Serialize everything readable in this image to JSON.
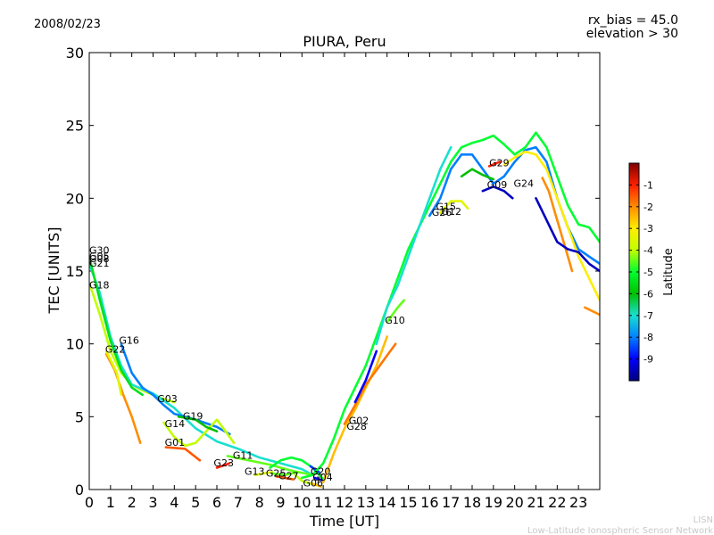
{
  "header": {
    "date": "2008/02/23",
    "bias": "rx_bias = 45.0",
    "elevation": "elevation > 30"
  },
  "footer": {
    "line1": "LISN",
    "line2": "Low-Latitude Ionospheric Sensor Network"
  },
  "colors": {
    "stops": [
      "#00007f",
      "#0000ff",
      "#007fff",
      "#19e0d0",
      "#00c000",
      "#00ff30",
      "#c0ff00",
      "#ffee00",
      "#ff8c00",
      "#ff2000",
      "#7f0000"
    ]
  },
  "chart_data": {
    "type": "scatter",
    "title": "PIURA, Peru",
    "xlabel": "Time [UT]",
    "ylabel": "TEC [UNITS]",
    "xlim": [
      0,
      24
    ],
    "ylim": [
      0,
      30
    ],
    "xticks": [
      "0",
      "1",
      "2",
      "3",
      "4",
      "5",
      "6",
      "7",
      "8",
      "9",
      "10",
      "11",
      "12",
      "13",
      "14",
      "15",
      "16",
      "17",
      "18",
      "19",
      "20",
      "21",
      "22",
      "23"
    ],
    "yticks": [
      "0",
      "5",
      "10",
      "15",
      "20",
      "25",
      "30"
    ],
    "colorbar": {
      "label": "Latitude",
      "range": [
        -10,
        0
      ],
      "ticks": [
        "-1",
        "-2",
        "-3",
        "-4",
        "-5",
        "-6",
        "-7",
        "-8",
        "-9"
      ]
    },
    "series": [
      {
        "lat": -4.0,
        "points": [
          [
            0,
            14.2
          ],
          [
            0.5,
            12.0
          ],
          [
            1.0,
            9.5
          ],
          [
            1.5,
            8.0
          ],
          [
            2.0,
            7.2
          ],
          [
            2.5,
            6.8
          ],
          [
            3.0,
            6.5
          ],
          [
            3.5,
            6.2
          ],
          [
            4.0,
            6.0
          ]
        ]
      },
      {
        "lat": -7.0,
        "points": [
          [
            0,
            15.5
          ],
          [
            0.5,
            13.5
          ],
          [
            1.0,
            10.5
          ],
          [
            1.5,
            8.5
          ],
          [
            2.0,
            7.2
          ],
          [
            3.0,
            6.6
          ],
          [
            4.0,
            5.6
          ],
          [
            5.0,
            4.2
          ],
          [
            6.0,
            3.3
          ],
          [
            7.0,
            2.8
          ],
          [
            8.0,
            2.2
          ],
          [
            9.0,
            1.8
          ],
          [
            10.0,
            1.4
          ],
          [
            10.5,
            1.0
          ]
        ]
      },
      {
        "lat": -5.5,
        "points": [
          [
            0,
            16.0
          ],
          [
            0.5,
            13.0
          ],
          [
            1.0,
            10.2
          ],
          [
            1.5,
            8.2
          ],
          [
            2.0,
            7.0
          ],
          [
            2.5,
            6.5
          ]
        ]
      },
      {
        "lat": -8.0,
        "points": [
          [
            1.5,
            10.0
          ],
          [
            2.0,
            8.0
          ],
          [
            2.5,
            7.0
          ],
          [
            3.0,
            6.5
          ],
          [
            3.5,
            5.8
          ],
          [
            4.0,
            5.2
          ],
          [
            5.0,
            4.8
          ],
          [
            6.0,
            4.3
          ],
          [
            6.6,
            3.8
          ]
        ]
      },
      {
        "lat": -2.0,
        "points": [
          [
            0.8,
            9.3
          ],
          [
            1.2,
            8.2
          ],
          [
            1.6,
            6.5
          ],
          [
            2.0,
            5.0
          ],
          [
            2.4,
            3.2
          ]
        ]
      },
      {
        "lat": -3.5,
        "points": [
          [
            0.8,
            9.5
          ],
          [
            1.3,
            8.0
          ],
          [
            1.5,
            6.5
          ]
        ]
      },
      {
        "lat": -4.0,
        "points": [
          [
            3.5,
            4.6
          ],
          [
            4.0,
            3.6
          ],
          [
            4.5,
            3.0
          ],
          [
            5.0,
            3.2
          ],
          [
            5.5,
            4.0
          ],
          [
            6.0,
            4.8
          ],
          [
            6.8,
            3.2
          ]
        ]
      },
      {
        "lat": -1.5,
        "points": [
          [
            3.6,
            2.9
          ],
          [
            4.5,
            2.8
          ],
          [
            5.2,
            2.0
          ]
        ]
      },
      {
        "lat": -6.0,
        "points": [
          [
            4.2,
            5.0
          ],
          [
            5.0,
            4.8
          ],
          [
            5.5,
            4.3
          ],
          [
            6.0,
            4.0
          ]
        ]
      },
      {
        "lat": -1.0,
        "points": [
          [
            6.0,
            1.5
          ],
          [
            6.6,
            1.8
          ]
        ]
      },
      {
        "lat": -4.5,
        "points": [
          [
            6.5,
            2.3
          ],
          [
            7.5,
            2.0
          ],
          [
            8.5,
            1.7
          ],
          [
            9.5,
            1.3
          ],
          [
            10.5,
            1.0
          ]
        ]
      },
      {
        "lat": -3.5,
        "points": [
          [
            7.8,
            1.0
          ],
          [
            8.6,
            1.2
          ]
        ]
      },
      {
        "lat": -5.0,
        "points": [
          [
            8.5,
            1.5
          ],
          [
            9.0,
            2.0
          ],
          [
            9.5,
            2.2
          ],
          [
            10.0,
            2.0
          ],
          [
            10.5,
            1.5
          ],
          [
            11.0,
            0.7
          ]
        ]
      },
      {
        "lat": -4.5,
        "points": [
          [
            8.6,
            1.1
          ],
          [
            9.2,
            1.0
          ],
          [
            9.8,
            1.2
          ]
        ]
      },
      {
        "lat": -1.5,
        "points": [
          [
            8.8,
            0.9
          ],
          [
            9.6,
            0.7
          ]
        ]
      },
      {
        "lat": -4.0,
        "points": [
          [
            9.7,
            1.0
          ],
          [
            10.0,
            0.6
          ],
          [
            10.4,
            0.4
          ]
        ]
      },
      {
        "lat": -2.5,
        "points": [
          [
            10.5,
            0.4
          ],
          [
            10.9,
            0.2
          ]
        ]
      },
      {
        "lat": -8.5,
        "points": [
          [
            10.4,
            1.6
          ],
          [
            10.8,
            1.2
          ]
        ]
      },
      {
        "lat": -9.0,
        "points": [
          [
            10.6,
            0.8
          ],
          [
            11.0,
            0.6
          ]
        ]
      },
      {
        "lat": -5.0,
        "points": [
          [
            10.0,
            0.8
          ],
          [
            10.5,
            1.0
          ],
          [
            11.0,
            1.8
          ],
          [
            11.5,
            3.5
          ],
          [
            12.0,
            5.5
          ],
          [
            12.5,
            7.0
          ],
          [
            13.0,
            8.5
          ],
          [
            13.5,
            10.5
          ],
          [
            14.0,
            12.5
          ],
          [
            14.5,
            14.5
          ],
          [
            15.0,
            16.5
          ],
          [
            15.5,
            18.0
          ],
          [
            16.0,
            19.5
          ],
          [
            16.5,
            21.0
          ],
          [
            17.0,
            22.5
          ],
          [
            17.5,
            23.5
          ],
          [
            18.0,
            23.8
          ],
          [
            18.5,
            24.0
          ],
          [
            19.0,
            24.3
          ],
          [
            19.5,
            23.7
          ],
          [
            20.0,
            23.0
          ],
          [
            20.5,
            23.5
          ],
          [
            21.0,
            24.5
          ],
          [
            21.5,
            23.5
          ],
          [
            22.0,
            21.5
          ],
          [
            22.5,
            19.5
          ],
          [
            23.0,
            18.2
          ],
          [
            23.5,
            18.0
          ],
          [
            24.0,
            17.0
          ]
        ]
      },
      {
        "lat": -2.5,
        "points": [
          [
            11.0,
            0.5
          ],
          [
            11.5,
            2.5
          ],
          [
            12.0,
            4.2
          ],
          [
            12.5,
            5.5
          ],
          [
            13.0,
            7.0
          ],
          [
            13.5,
            8.5
          ],
          [
            14.0,
            10.5
          ]
        ]
      },
      {
        "lat": -1.8,
        "points": [
          [
            12.0,
            4.5
          ],
          [
            12.5,
            5.8
          ],
          [
            13.0,
            7.2
          ],
          [
            13.5,
            8.2
          ],
          [
            14.0,
            9.2
          ],
          [
            14.4,
            10.0
          ]
        ]
      },
      {
        "lat": -9.0,
        "points": [
          [
            12.5,
            6.0
          ],
          [
            13.0,
            7.5
          ],
          [
            13.5,
            9.5
          ]
        ]
      },
      {
        "lat": -4.5,
        "points": [
          [
            14.0,
            11.5
          ],
          [
            14.5,
            12.5
          ],
          [
            14.8,
            13.0
          ]
        ]
      },
      {
        "lat": -7.0,
        "points": [
          [
            13.5,
            10.0
          ],
          [
            14.0,
            12.5
          ],
          [
            14.5,
            14.0
          ],
          [
            15.0,
            16.0
          ],
          [
            15.5,
            18.0
          ],
          [
            16.0,
            20.0
          ],
          [
            16.5,
            22.0
          ],
          [
            17.0,
            23.5
          ]
        ]
      },
      {
        "lat": -8.0,
        "points": [
          [
            16.0,
            18.8
          ],
          [
            16.5,
            20.0
          ],
          [
            17.0,
            22.0
          ],
          [
            17.5,
            23.0
          ],
          [
            18.0,
            23.0
          ],
          [
            18.5,
            22.0
          ],
          [
            19.0,
            21.0
          ],
          [
            19.5,
            21.5
          ],
          [
            20.0,
            22.5
          ],
          [
            20.5,
            23.3
          ],
          [
            21.0,
            23.5
          ],
          [
            21.5,
            22.5
          ],
          [
            22.0,
            20.0
          ],
          [
            22.5,
            18.0
          ],
          [
            23.0,
            16.5
          ],
          [
            23.5,
            16.0
          ],
          [
            24.0,
            15.5
          ]
        ]
      },
      {
        "lat": -3.5,
        "points": [
          [
            16.5,
            19.0
          ],
          [
            17.0,
            19.8
          ],
          [
            17.5,
            19.8
          ],
          [
            17.8,
            19.3
          ]
        ]
      },
      {
        "lat": -6.0,
        "points": [
          [
            17.5,
            21.5
          ],
          [
            18.0,
            22.0
          ],
          [
            18.5,
            21.6
          ],
          [
            19.0,
            21.3
          ]
        ]
      },
      {
        "lat": -9.5,
        "points": [
          [
            18.5,
            20.5
          ],
          [
            19.0,
            20.8
          ],
          [
            19.5,
            20.5
          ],
          [
            19.9,
            20.0
          ]
        ]
      },
      {
        "lat": -1.0,
        "points": [
          [
            18.8,
            22.2
          ],
          [
            19.3,
            22.5
          ]
        ]
      },
      {
        "lat": -3.0,
        "points": [
          [
            19.5,
            22.3
          ],
          [
            20.0,
            22.8
          ],
          [
            20.5,
            23.2
          ],
          [
            21.0,
            23.0
          ],
          [
            21.5,
            22.0
          ],
          [
            22.0,
            20.0
          ],
          [
            22.5,
            18.0
          ],
          [
            23.0,
            16.0
          ],
          [
            23.5,
            14.5
          ],
          [
            24.0,
            13.0
          ]
        ]
      },
      {
        "lat": -2.0,
        "points": [
          [
            21.3,
            21.4
          ],
          [
            21.6,
            20.5
          ],
          [
            21.9,
            19.0
          ],
          [
            22.2,
            17.5
          ],
          [
            22.5,
            16.0
          ],
          [
            22.7,
            15.0
          ]
        ]
      },
      {
        "lat": -9.5,
        "points": [
          [
            21.0,
            20.0
          ],
          [
            21.5,
            18.5
          ],
          [
            22.0,
            17.0
          ],
          [
            22.5,
            16.5
          ],
          [
            23.0,
            16.3
          ],
          [
            23.5,
            15.5
          ],
          [
            24.0,
            15.0
          ]
        ]
      },
      {
        "lat": -2.0,
        "points": [
          [
            23.3,
            12.5
          ],
          [
            24.0,
            12.0
          ]
        ]
      }
    ],
    "labels": [
      {
        "text": "G30",
        "x": 0.0,
        "y": 16.2
      },
      {
        "text": "G05",
        "x": 0.0,
        "y": 15.8
      },
      {
        "text": "G08",
        "x": 0.0,
        "y": 15.6
      },
      {
        "text": "G21",
        "x": 0.0,
        "y": 15.3
      },
      {
        "text": "G18",
        "x": 0.0,
        "y": 13.8
      },
      {
        "text": "G16",
        "x": 1.4,
        "y": 10.0
      },
      {
        "text": "G22",
        "x": 0.75,
        "y": 9.4
      },
      {
        "text": "G03",
        "x": 3.2,
        "y": 6.0
      },
      {
        "text": "G19",
        "x": 4.4,
        "y": 4.8
      },
      {
        "text": "G14",
        "x": 3.55,
        "y": 4.3
      },
      {
        "text": "G01",
        "x": 3.55,
        "y": 3.0
      },
      {
        "text": "G23",
        "x": 5.85,
        "y": 1.6
      },
      {
        "text": "G11",
        "x": 6.75,
        "y": 2.1
      },
      {
        "text": "G13",
        "x": 7.3,
        "y": 1.0
      },
      {
        "text": "G25",
        "x": 8.3,
        "y": 0.9
      },
      {
        "text": "G27",
        "x": 8.9,
        "y": 0.7
      },
      {
        "text": "G20",
        "x": 10.4,
        "y": 1.0
      },
      {
        "text": "G04",
        "x": 10.5,
        "y": 0.6
      },
      {
        "text": "G06",
        "x": 10.05,
        "y": 0.2
      },
      {
        "text": "G02",
        "x": 12.2,
        "y": 4.5
      },
      {
        "text": "G28",
        "x": 12.1,
        "y": 4.1
      },
      {
        "text": "G10",
        "x": 13.9,
        "y": 11.4
      },
      {
        "text": "G15",
        "x": 16.3,
        "y": 19.2
      },
      {
        "text": "G26",
        "x": 16.1,
        "y": 18.8
      },
      {
        "text": "G12",
        "x": 16.55,
        "y": 18.85
      },
      {
        "text": "G29",
        "x": 18.8,
        "y": 22.2
      },
      {
        "text": "G09",
        "x": 18.7,
        "y": 20.7
      },
      {
        "text": "G24",
        "x": 19.95,
        "y": 20.8
      }
    ]
  }
}
